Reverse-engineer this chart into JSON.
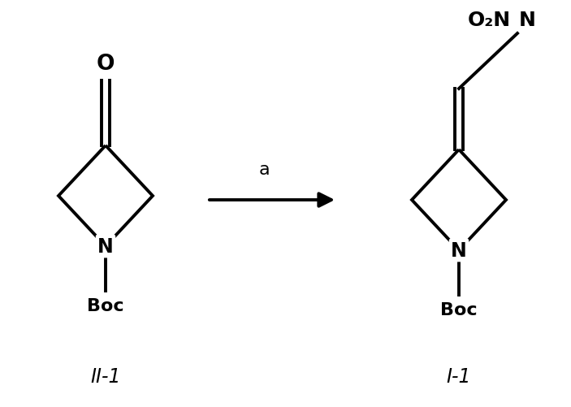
{
  "bg_color": "#ffffff",
  "line_color": "#000000",
  "line_width": 2.8,
  "arrow_label": "a",
  "left_label": "II-1",
  "right_label": "I-1",
  "left_O_label": "O",
  "left_N_label": "N",
  "left_Boc_label": "Boc",
  "right_N_label": "N",
  "right_Boc_label": "Boc",
  "right_top_label": "O₂N",
  "font_size_labels": 15,
  "font_size_compound": 14
}
